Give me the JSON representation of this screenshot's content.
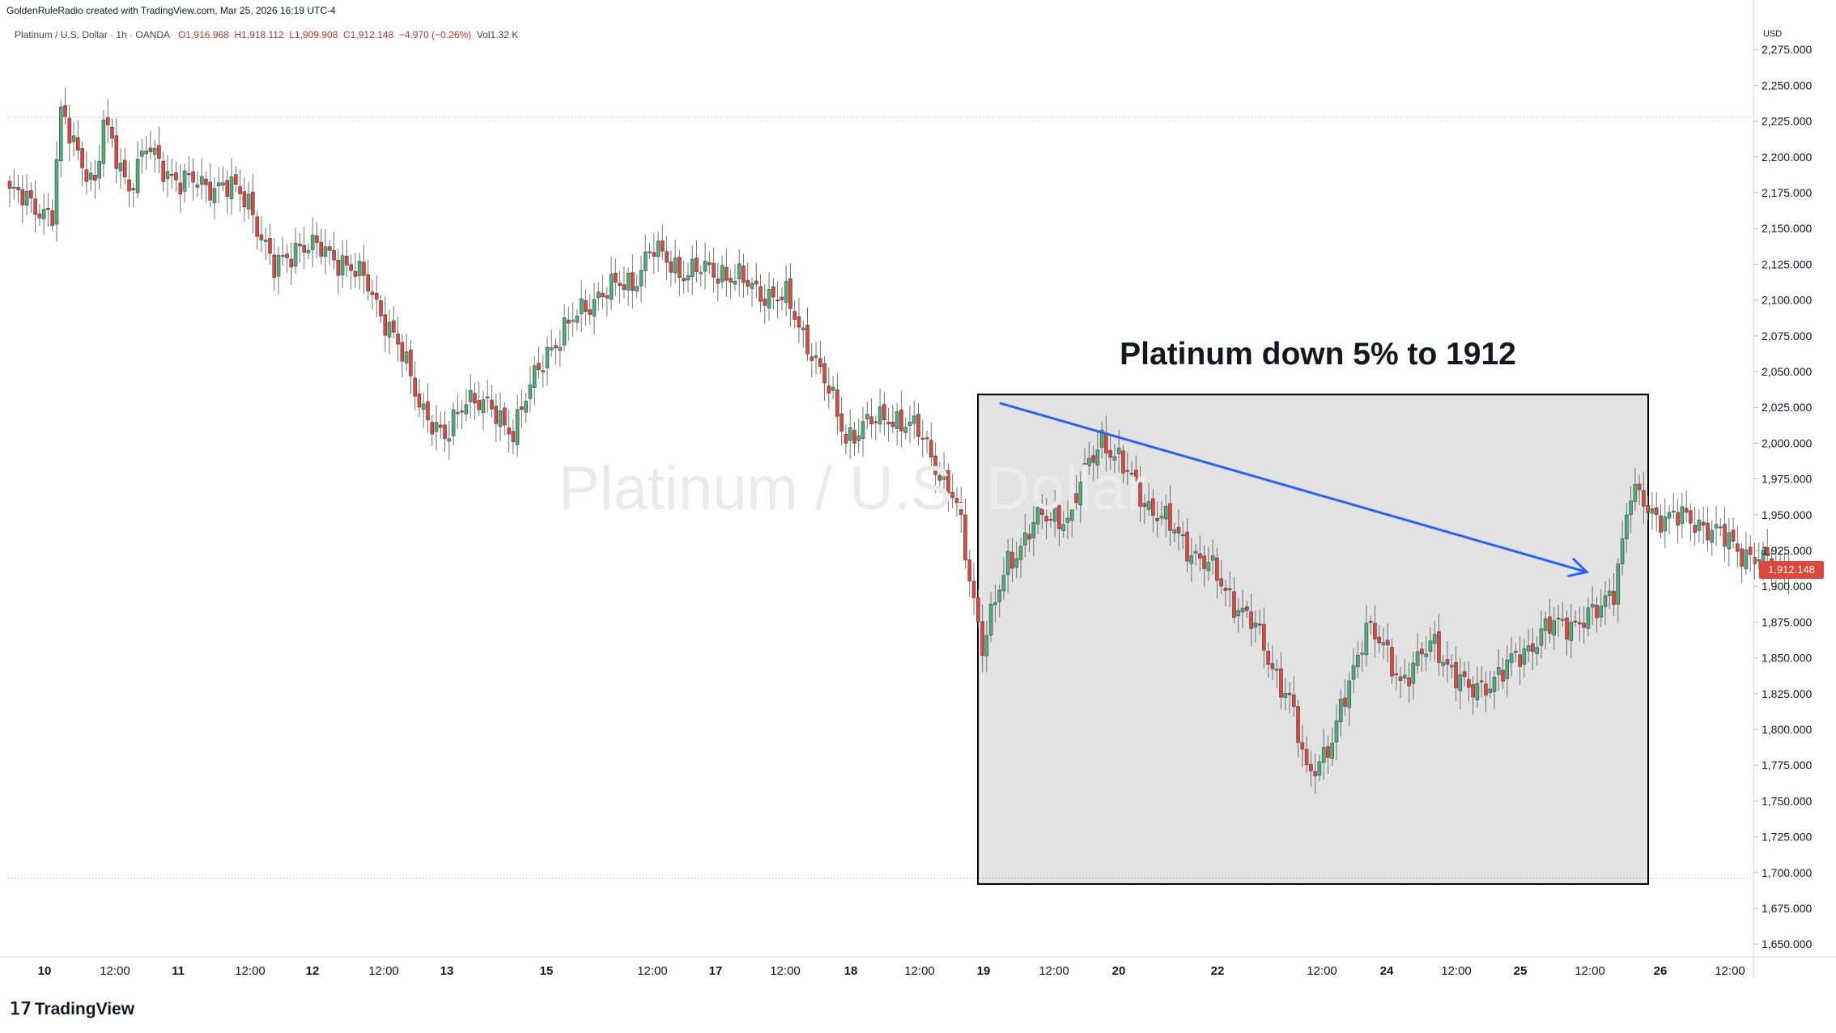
{
  "header": {
    "credit": "GoldenRuleRadio created with TradingView.com, Mar 25, 2026 16:19 UTC-4",
    "symbol": "Platinum / U.S. Dollar · 1h · OANDA",
    "open": "O1,916.968",
    "high": "H1,918.112",
    "low": "L1,909.908",
    "close": "C1,912.148",
    "change": "−4.970 (−0.26%)",
    "volume": "Vol1.32 K"
  },
  "watermark": "Platinum / U.S. Dollar",
  "annotation": "Platinum down 5% to 1912",
  "currency": "USD",
  "last_price_label": "1,912.148",
  "brand": "TradingView",
  "colors": {
    "up": "#4caf79",
    "down": "#e0463c",
    "wick": "#6f6f6f",
    "trendline": "#2962ff",
    "box_fill": "#e3e3e3",
    "price_tag": "#e0463c"
  },
  "chart_data": {
    "type": "candlestick",
    "title": "Platinum / U.S. Dollar · 1h · OANDA",
    "ylabel": "USD",
    "ylim": [
      1640,
      2290
    ],
    "y_ticks": [
      "2,275.000",
      "2,250.000",
      "2,225.000",
      "2,200.000",
      "2,175.000",
      "2,150.000",
      "2,125.000",
      "2,100.000",
      "2,075.000",
      "2,050.000",
      "2,025.000",
      "2,000.000",
      "1,975.000",
      "1,950.000",
      "1,925.000",
      "1,900.000",
      "1,875.000",
      "1,850.000",
      "1,825.000",
      "1,800.000",
      "1,775.000",
      "1,750.000",
      "1,725.000",
      "1,700.000",
      "1,675.000",
      "1,650.000"
    ],
    "x_ticks": [
      "10",
      "12:00",
      "11",
      "12:00",
      "12",
      "12:00",
      "13",
      "15",
      "12:00",
      "17",
      "12:00",
      "18",
      "12:00",
      "19",
      "12:00",
      "20",
      "22",
      "12:00",
      "24",
      "12:00",
      "25",
      "12:00",
      "26",
      "12:00"
    ],
    "path": [
      [
        0,
        2175
      ],
      [
        10,
        2160
      ],
      [
        12,
        2228
      ],
      [
        20,
        2180
      ],
      [
        22,
        2222
      ],
      [
        28,
        2180
      ],
      [
        32,
        2205
      ],
      [
        40,
        2182
      ],
      [
        50,
        2180
      ],
      [
        56,
        2170
      ],
      [
        62,
        2120
      ],
      [
        68,
        2140
      ],
      [
        78,
        2128
      ],
      [
        84,
        2110
      ],
      [
        90,
        2075
      ],
      [
        96,
        2030
      ],
      [
        102,
        2000
      ],
      [
        107,
        2035
      ],
      [
        118,
        2010
      ],
      [
        126,
        2065
      ],
      [
        138,
        2105
      ],
      [
        146,
        2112
      ],
      [
        150,
        2135
      ],
      [
        158,
        2120
      ],
      [
        167,
        2120
      ],
      [
        175,
        2107
      ],
      [
        182,
        2100
      ],
      [
        188,
        2065
      ],
      [
        196,
        2005
      ],
      [
        206,
        2020
      ],
      [
        214,
        2005
      ],
      [
        222,
        1955
      ],
      [
        228,
        1860
      ],
      [
        234,
        1915
      ],
      [
        240,
        1945
      ],
      [
        248,
        1950
      ],
      [
        256,
        2005
      ],
      [
        266,
        1960
      ],
      [
        274,
        1935
      ],
      [
        282,
        1910
      ],
      [
        292,
        1870
      ],
      [
        300,
        1820
      ],
      [
        304,
        1770
      ],
      [
        310,
        1790
      ],
      [
        318,
        1875
      ],
      [
        326,
        1835
      ],
      [
        334,
        1860
      ],
      [
        342,
        1825
      ],
      [
        350,
        1840
      ],
      [
        360,
        1870
      ],
      [
        366,
        1875
      ],
      [
        372,
        1880
      ],
      [
        376,
        1900
      ],
      [
        380,
        1965
      ],
      [
        386,
        1950
      ],
      [
        396,
        1945
      ],
      [
        406,
        1925
      ],
      [
        412,
        1915
      ],
      [
        417,
        1912
      ]
    ],
    "trendline": [
      [
        1235,
        2028
      ],
      [
        1960,
        1910
      ]
    ],
    "highlight_box": {
      "x_from": 1208,
      "x_to": 2036,
      "y_from": 1692,
      "y_to": 2034
    },
    "reference_levels": [
      2228,
      1696
    ],
    "last_price": 1912.148
  }
}
